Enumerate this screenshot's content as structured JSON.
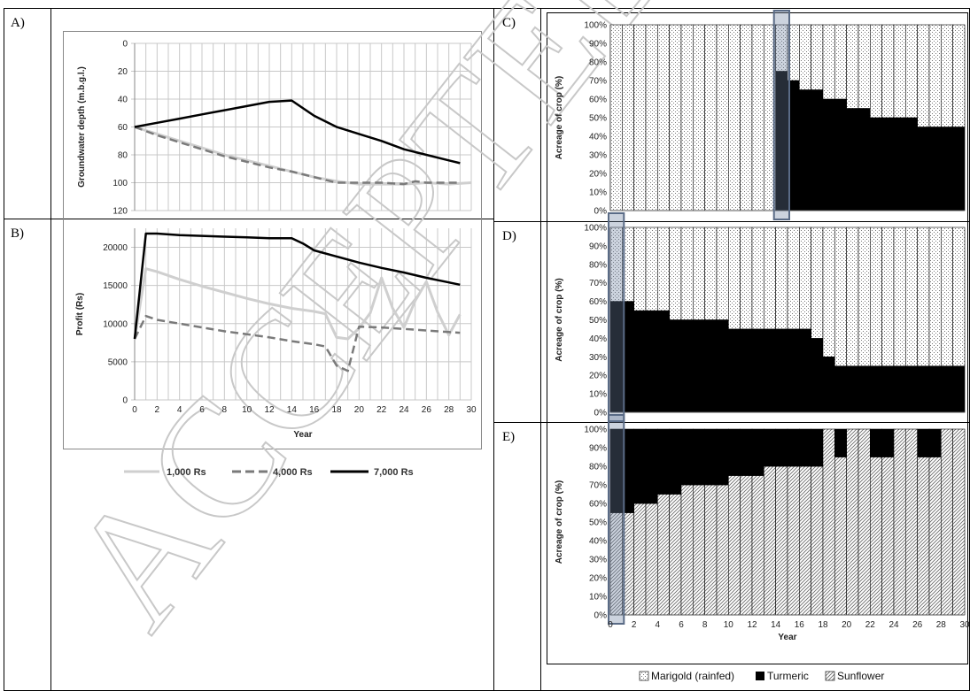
{
  "panel_labels": [
    "A)",
    "B)",
    "C)",
    "D)",
    "E)"
  ],
  "watermark_text": "ACCEPTED MANUSCRIPT",
  "legend_left": [
    "1,000 Rs",
    "4,000 Rs",
    "7,000 Rs"
  ],
  "legend_right": [
    "Marigold (rainfed)",
    "Turmeric",
    "Sunflower"
  ],
  "chart_data": [
    {
      "id": "A",
      "type": "line",
      "ylabel": "Groundwater depth (m.b.g.l.)",
      "xlabel": "",
      "xlim": [
        0,
        30
      ],
      "ylim": [
        0,
        120
      ],
      "y_inverted": true,
      "yticks": [
        0,
        20,
        40,
        60,
        80,
        100,
        120
      ],
      "grid": true,
      "series": [
        {
          "name": "1,000 Rs",
          "x": [
            0,
            2,
            4,
            6,
            8,
            10,
            12,
            14,
            16,
            18,
            20,
            22,
            24,
            26,
            28,
            30
          ],
          "values": [
            60,
            65,
            70,
            75,
            80,
            84,
            88,
            92,
            96,
            99,
            101,
            101,
            101,
            100,
            101,
            100
          ]
        },
        {
          "name": "4,000 Rs",
          "x": [
            0,
            2,
            4,
            6,
            8,
            10,
            12,
            14,
            16,
            18,
            20,
            22,
            24,
            25,
            26,
            28,
            29
          ],
          "values": [
            60,
            66,
            71,
            76,
            81,
            85,
            89,
            92,
            96,
            100,
            100,
            100,
            101,
            99,
            100,
            100,
            100
          ]
        },
        {
          "name": "7,000 Rs",
          "x": [
            0,
            2,
            4,
            6,
            8,
            10,
            12,
            14,
            16,
            18,
            20,
            22,
            24,
            26,
            28,
            29
          ],
          "values": [
            60,
            57,
            54,
            51,
            48,
            45,
            42,
            41,
            52,
            60,
            65,
            70,
            76,
            80,
            84,
            86
          ]
        }
      ]
    },
    {
      "id": "B",
      "type": "line",
      "ylabel": "Profit (Rs)",
      "xlabel": "Year",
      "xlim": [
        0,
        30
      ],
      "ylim": [
        0,
        22500
      ],
      "yticks": [
        0,
        5000,
        10000,
        15000,
        20000
      ],
      "xticks": [
        0,
        2,
        4,
        6,
        8,
        10,
        12,
        14,
        16,
        18,
        20,
        22,
        24,
        26,
        28,
        30
      ],
      "grid": true,
      "series": [
        {
          "name": "1,000 Rs",
          "x": [
            0,
            1,
            2,
            4,
            6,
            8,
            10,
            12,
            14,
            16,
            17,
            18,
            19,
            20,
            21,
            22,
            23,
            24,
            25,
            26,
            27,
            28,
            29
          ],
          "values": [
            8000,
            17200,
            16800,
            15800,
            14900,
            14100,
            13300,
            12600,
            12000,
            11600,
            11300,
            8200,
            8000,
            9400,
            11400,
            16000,
            12000,
            9500,
            13000,
            15500,
            11500,
            8500,
            11200
          ]
        },
        {
          "name": "4,000 Rs",
          "x": [
            0,
            1,
            2,
            4,
            6,
            8,
            10,
            12,
            14,
            16,
            17,
            18,
            19,
            20,
            22,
            24,
            26,
            28,
            29
          ],
          "values": [
            8000,
            11000,
            10500,
            10000,
            9500,
            9000,
            8600,
            8200,
            7700,
            7300,
            7000,
            4500,
            3800,
            9600,
            9500,
            9300,
            9100,
            8900,
            8800
          ]
        },
        {
          "name": "7,000 Rs",
          "x": [
            0,
            1,
            2,
            4,
            6,
            8,
            10,
            12,
            14,
            15,
            16,
            18,
            20,
            22,
            24,
            26,
            28,
            29
          ],
          "values": [
            8000,
            21800,
            21800,
            21600,
            21500,
            21400,
            21300,
            21200,
            21200,
            20500,
            19600,
            18800,
            18000,
            17300,
            16700,
            16000,
            15400,
            15100
          ]
        }
      ]
    },
    {
      "id": "C",
      "type": "bar",
      "stacked": true,
      "ylabel": "Acreage of crop (%)",
      "xlabel": "",
      "x": [
        1,
        2,
        3,
        4,
        5,
        6,
        7,
        8,
        9,
        10,
        11,
        12,
        13,
        14,
        15,
        16,
        17,
        18,
        19,
        20,
        21,
        22,
        23,
        24,
        25,
        26,
        27,
        28,
        29,
        30
      ],
      "ylim": [
        0,
        100
      ],
      "highlight_x": 15,
      "series": [
        {
          "name": "Turmeric",
          "values": [
            0,
            0,
            0,
            0,
            0,
            0,
            0,
            0,
            0,
            0,
            0,
            0,
            0,
            0,
            75,
            70,
            65,
            65,
            60,
            60,
            55,
            55,
            50,
            50,
            50,
            50,
            45,
            45,
            45,
            45
          ]
        },
        {
          "name": "Marigold (rainfed)",
          "values": [
            100,
            100,
            100,
            100,
            100,
            100,
            100,
            100,
            100,
            100,
            100,
            100,
            100,
            100,
            25,
            30,
            35,
            35,
            40,
            40,
            45,
            45,
            50,
            50,
            50,
            50,
            55,
            55,
            55,
            55
          ]
        }
      ]
    },
    {
      "id": "D",
      "type": "bar",
      "stacked": true,
      "ylabel": "Acreage of crop (%)",
      "xlabel": "",
      "x": [
        1,
        2,
        3,
        4,
        5,
        6,
        7,
        8,
        9,
        10,
        11,
        12,
        13,
        14,
        15,
        16,
        17,
        18,
        19,
        20,
        21,
        22,
        23,
        24,
        25,
        26,
        27,
        28,
        29,
        30
      ],
      "ylim": [
        0,
        100
      ],
      "highlight_x": 1,
      "series": [
        {
          "name": "Turmeric",
          "values": [
            60,
            60,
            55,
            55,
            55,
            50,
            50,
            50,
            50,
            50,
            45,
            45,
            45,
            45,
            45,
            45,
            45,
            40,
            30,
            25,
            25,
            25,
            25,
            25,
            25,
            25,
            25,
            25,
            25,
            25
          ]
        },
        {
          "name": "Marigold (rainfed)",
          "values": [
            40,
            40,
            45,
            45,
            45,
            50,
            50,
            50,
            50,
            50,
            55,
            55,
            55,
            55,
            55,
            55,
            55,
            60,
            70,
            75,
            75,
            75,
            75,
            75,
            75,
            75,
            75,
            75,
            75,
            75
          ]
        }
      ]
    },
    {
      "id": "E",
      "type": "bar",
      "stacked": true,
      "ylabel": "Acreage of crop (%)",
      "xlabel": "Year",
      "x": [
        1,
        2,
        3,
        4,
        5,
        6,
        7,
        8,
        9,
        10,
        11,
        12,
        13,
        14,
        15,
        16,
        17,
        18,
        19,
        20,
        21,
        22,
        23,
        24,
        25,
        26,
        27,
        28,
        29,
        30
      ],
      "xticks": [
        0,
        2,
        4,
        6,
        8,
        10,
        12,
        14,
        16,
        18,
        20,
        22,
        24,
        26,
        28,
        30
      ],
      "ylim": [
        0,
        100
      ],
      "highlight_x": 1,
      "series": [
        {
          "name": "Sunflower",
          "values": [
            55,
            55,
            60,
            60,
            65,
            65,
            70,
            70,
            70,
            70,
            75,
            75,
            75,
            80,
            80,
            80,
            80,
            80,
            100,
            85,
            100,
            100,
            85,
            85,
            100,
            100,
            85,
            85,
            100,
            100
          ]
        },
        {
          "name": "Turmeric",
          "values": [
            45,
            45,
            40,
            40,
            35,
            35,
            30,
            30,
            30,
            30,
            25,
            25,
            25,
            20,
            20,
            20,
            20,
            20,
            0,
            15,
            0,
            0,
            15,
            15,
            0,
            0,
            15,
            15,
            0,
            0
          ]
        }
      ]
    }
  ]
}
